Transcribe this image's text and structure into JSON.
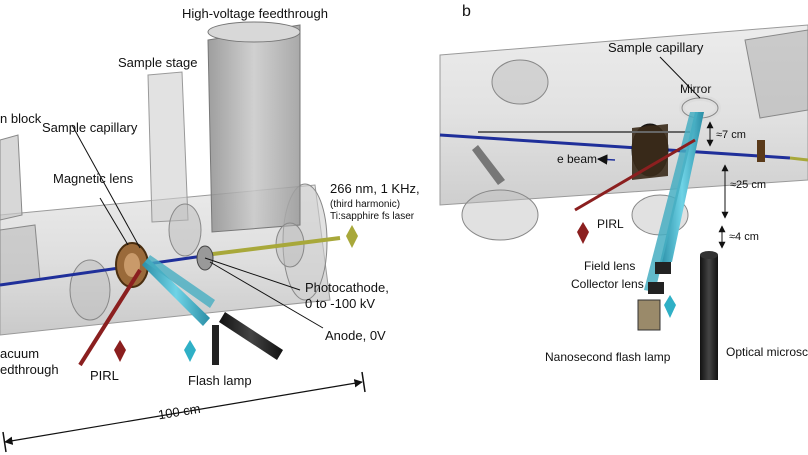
{
  "panel_b_letter": "b",
  "panel_a": {
    "labels": {
      "hv_feedthrough": "High-voltage feedthrough",
      "sample_stage": "Sample stage",
      "block_partial": "n block",
      "sample_capillary": "Sample capillary",
      "magnetic_lens": "Magnetic lens",
      "laser_line1": "266 nm, 1 KHz,",
      "laser_line2": "(third harmonic)",
      "laser_line3": "Ti:sapphire fs laser",
      "photocathode_line1": "Photocathode,",
      "photocathode_line2": "0 to -100 kV",
      "anode": "Anode, 0V",
      "vacuum_line1": "acuum",
      "vacuum_line2": "edthrough",
      "pirl": "PIRL",
      "flash_lamp": "Flash lamp",
      "scale": "100 cm"
    }
  },
  "panel_b": {
    "labels": {
      "sample_capillary": "Sample capillary",
      "mirror": "Mirror",
      "e_beam": "e beam",
      "pirl": "PIRL",
      "dist_7": "≈7 cm",
      "dist_25": "≈25 cm",
      "dist_4": "≈4 cm",
      "field_lens": "Field lens",
      "collector_lens": "Collector lens",
      "nanosecond_lamp": "Nanosecond flash lamp",
      "optical_microscope": "Optical microsco"
    }
  },
  "colors": {
    "electron_beam": "#1f2f9a",
    "pirl_beam": "#8b1f1f",
    "uv_laser": "#a8a83a",
    "flash_light": "#3ab3c9",
    "chamber": "#b8b8b8",
    "copper_lens": "#9a6a3a"
  }
}
